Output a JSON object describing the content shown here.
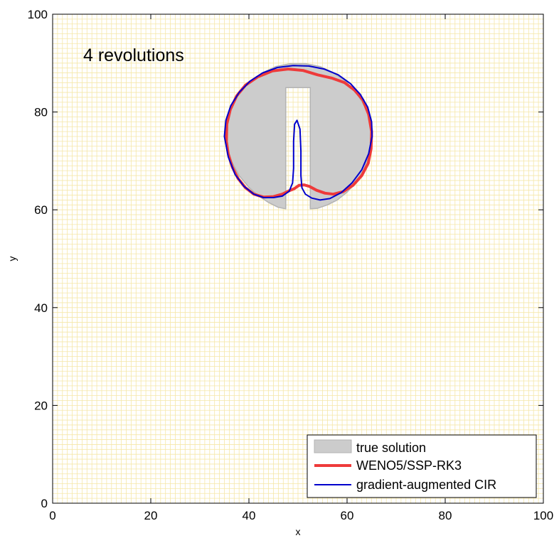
{
  "chart_data": {
    "type": "line",
    "title": "",
    "annotation": "4 revolutions",
    "xlabel": "x",
    "ylabel": "y",
    "xlim": [
      0,
      100
    ],
    "ylim": [
      0,
      100
    ],
    "xticks": [
      0,
      20,
      40,
      60,
      80,
      100
    ],
    "yticks": [
      0,
      20,
      40,
      60,
      80,
      100
    ],
    "xtick_labels": [
      "0",
      "20",
      "40",
      "60",
      "80",
      "100"
    ],
    "ytick_labels": [
      "0",
      "20",
      "40",
      "60",
      "80",
      "100"
    ],
    "grid": true,
    "grid_spacing": 1,
    "grid_color": "#f5e7a8",
    "legend_position": "bottom-right",
    "series": [
      {
        "name": "true solution",
        "style": "filled-area",
        "color": "#cccccc",
        "edge_color": "#b3b3b3",
        "x": [
          47.5,
          46.0,
          44.0,
          42.0,
          40.0,
          38.0,
          36.5,
          35.5,
          35.0,
          35.3,
          36.3,
          38.0,
          40.2,
          42.7,
          45.5,
          48.5,
          51.5,
          54.5,
          57.3,
          59.8,
          62.0,
          63.7,
          64.7,
          65.0,
          64.5,
          63.5,
          62.0,
          60.0,
          58.0,
          56.0,
          54.0,
          52.5,
          52.5,
          52.5,
          47.5,
          47.5
        ],
        "y": [
          60.2,
          60.5,
          61.5,
          62.8,
          64.6,
          67.0,
          69.8,
          72.7,
          75.0,
          78.0,
          81.0,
          83.8,
          86.2,
          88.0,
          89.3,
          89.9,
          89.9,
          89.3,
          88.0,
          86.2,
          83.8,
          81.0,
          78.0,
          75.0,
          71.5,
          68.5,
          65.8,
          63.6,
          62.0,
          61.0,
          60.3,
          60.2,
          85.0,
          85.0,
          85.0,
          60.2
        ]
      },
      {
        "name": "WENO5/SSP-RK3",
        "style": "line",
        "color": "#ee3a3a",
        "width": 4,
        "x": [
          35.4,
          35.5,
          36.2,
          37.5,
          39.3,
          41.8,
          44.8,
          48.0,
          51.0,
          54.0,
          57.0,
          59.5,
          61.5,
          63.2,
          64.4,
          65.0,
          64.9,
          64.3,
          63.0,
          61.2,
          59.2,
          57.2,
          55.5,
          53.8,
          52.3,
          51.2,
          50.2,
          49.2,
          48.2,
          46.8,
          45.0,
          43.0,
          41.0,
          39.3,
          37.8,
          36.6,
          35.8,
          35.4
        ],
        "y": [
          74.0,
          77.5,
          80.5,
          83.3,
          85.5,
          87.2,
          88.4,
          88.8,
          88.5,
          87.6,
          86.9,
          86.0,
          84.5,
          82.5,
          79.5,
          76.0,
          72.5,
          69.5,
          67.0,
          65.0,
          63.7,
          63.2,
          63.4,
          64.0,
          64.8,
          65.1,
          65.0,
          64.3,
          63.9,
          63.2,
          62.7,
          62.6,
          63.2,
          64.5,
          66.4,
          68.8,
          71.4,
          74.0
        ]
      },
      {
        "name": "gradient-augmented CIR",
        "style": "line",
        "color": "#0000cc",
        "width": 2,
        "x": [
          35.0,
          35.3,
          36.3,
          38.0,
          40.2,
          42.8,
          45.8,
          49.0,
          52.2,
          55.3,
          58.2,
          60.7,
          62.7,
          64.2,
          65.0,
          65.1,
          64.4,
          63.0,
          61.0,
          58.8,
          56.5,
          54.5,
          52.8,
          51.5,
          50.8,
          50.6,
          50.6,
          50.4,
          49.8,
          49.3,
          49.1,
          49.1,
          48.9,
          48.2,
          46.8,
          45.0,
          43.0,
          41.0,
          39.0,
          37.2,
          35.8,
          35.0
        ],
        "y": [
          75.0,
          78.3,
          81.3,
          84.0,
          86.3,
          88.0,
          89.1,
          89.5,
          89.4,
          88.8,
          87.6,
          85.8,
          83.6,
          81.0,
          78.0,
          75.0,
          71.5,
          68.2,
          65.5,
          63.5,
          62.3,
          62.0,
          62.4,
          63.2,
          64.5,
          67.0,
          72.0,
          76.5,
          78.3,
          77.5,
          74.0,
          68.5,
          65.5,
          63.8,
          62.8,
          62.5,
          62.5,
          63.2,
          64.8,
          67.2,
          70.8,
          75.0
        ]
      }
    ]
  }
}
